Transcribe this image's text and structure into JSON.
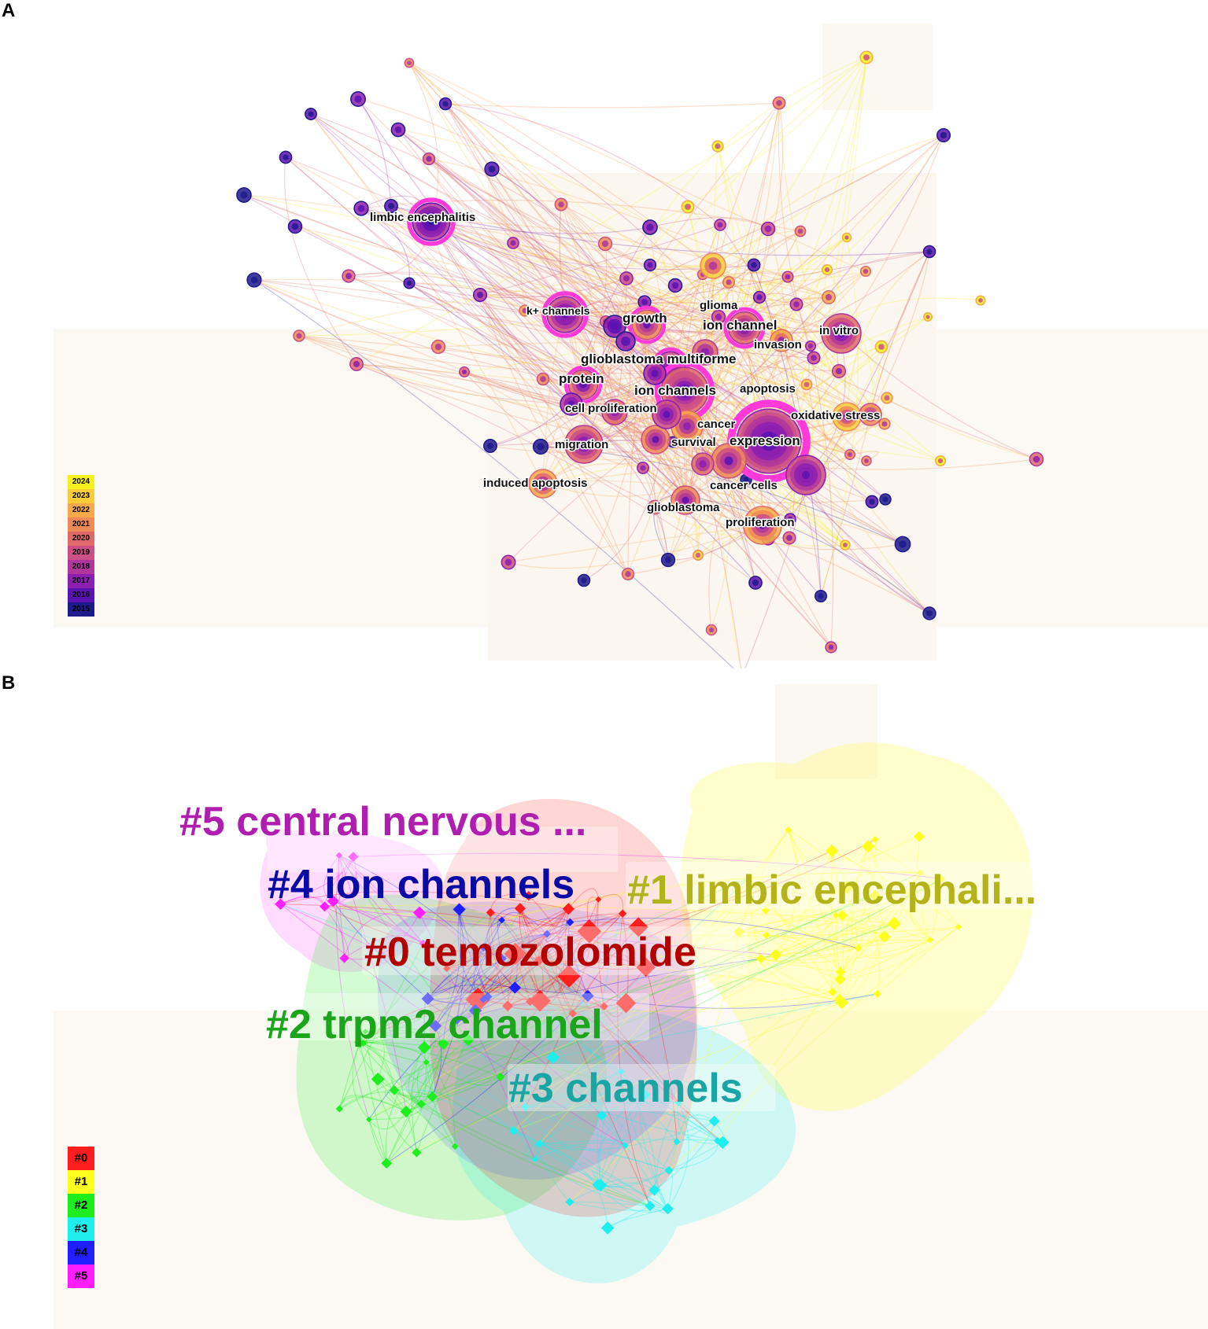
{
  "panels": {
    "a": {
      "letter": "A"
    },
    "b": {
      "letter": "B"
    }
  },
  "keyword_labels": [
    {
      "id": "limbic-encephalitis",
      "text": "limbic encephalitis"
    },
    {
      "id": "k-channels",
      "text": "k+ channels"
    },
    {
      "id": "growth",
      "text": "growth"
    },
    {
      "id": "glioma",
      "text": "glioma"
    },
    {
      "id": "ion-channel",
      "text": "ion channel"
    },
    {
      "id": "in-vitro",
      "text": "in vitro"
    },
    {
      "id": "invasion",
      "text": "invasion"
    },
    {
      "id": "glioblastoma-multiforme",
      "text": "glioblastoma multiforme"
    },
    {
      "id": "protein",
      "text": "protein"
    },
    {
      "id": "ion-channels",
      "text": "ion channels"
    },
    {
      "id": "apoptosis",
      "text": "apoptosis"
    },
    {
      "id": "cell-proliferation",
      "text": "cell proliferation"
    },
    {
      "id": "oxidative-stress",
      "text": "oxidative stress"
    },
    {
      "id": "cancer",
      "text": "cancer"
    },
    {
      "id": "survival",
      "text": "survival"
    },
    {
      "id": "expression",
      "text": "expression"
    },
    {
      "id": "migration",
      "text": "migration"
    },
    {
      "id": "induced-apoptosis",
      "text": "induced apoptosis"
    },
    {
      "id": "cancer-cells",
      "text": "cancer cells"
    },
    {
      "id": "glioblastoma",
      "text": "glioblastoma"
    },
    {
      "id": "proliferation",
      "text": "proliferation"
    }
  ],
  "year_legend": [
    {
      "label": "2024",
      "color": "#f5f01e"
    },
    {
      "label": "2023",
      "color": "#f9cd3a"
    },
    {
      "label": "2022",
      "color": "#f7a94a"
    },
    {
      "label": "2021",
      "color": "#ef8a56"
    },
    {
      "label": "2020",
      "color": "#e06a6a"
    },
    {
      "label": "2019",
      "color": "#cc4f85"
    },
    {
      "label": "2018",
      "color": "#b0369c"
    },
    {
      "label": "2017",
      "color": "#8c1fb0"
    },
    {
      "label": "2016",
      "color": "#5a12b0"
    },
    {
      "label": "2015",
      "color": "#1f1a8c"
    }
  ],
  "clusters": [
    {
      "id": "c0",
      "label": "#0 temozolomide",
      "color": "#ff1e1e",
      "text_color": "#b30000"
    },
    {
      "id": "c1",
      "label": "#1 limbic encephali...",
      "color": "#ffff1e",
      "text_color": "#b3b31a"
    },
    {
      "id": "c2",
      "label": "#2 trpm2 channel",
      "color": "#1eee1e",
      "text_color": "#1aa51a"
    },
    {
      "id": "c3",
      "label": "#3 channels",
      "color": "#1eeeee",
      "text_color": "#1aa5a5"
    },
    {
      "id": "c4",
      "label": "#4 ion channels",
      "color": "#1e1eff",
      "text_color": "#0a0aa5"
    },
    {
      "id": "c5",
      "label": "#5 central nervous ...",
      "color": "#ff1eff",
      "text_color": "#b01eb0"
    }
  ],
  "cluster_legend": [
    {
      "label": "#0",
      "color": "#ff1e1e"
    },
    {
      "label": "#1",
      "color": "#ffff1e"
    },
    {
      "label": "#2",
      "color": "#1eee1e"
    },
    {
      "label": "#3",
      "color": "#1eeeee"
    },
    {
      "label": "#4",
      "color": "#1e1eff"
    },
    {
      "label": "#5",
      "color": "#ff1eff"
    }
  ]
}
